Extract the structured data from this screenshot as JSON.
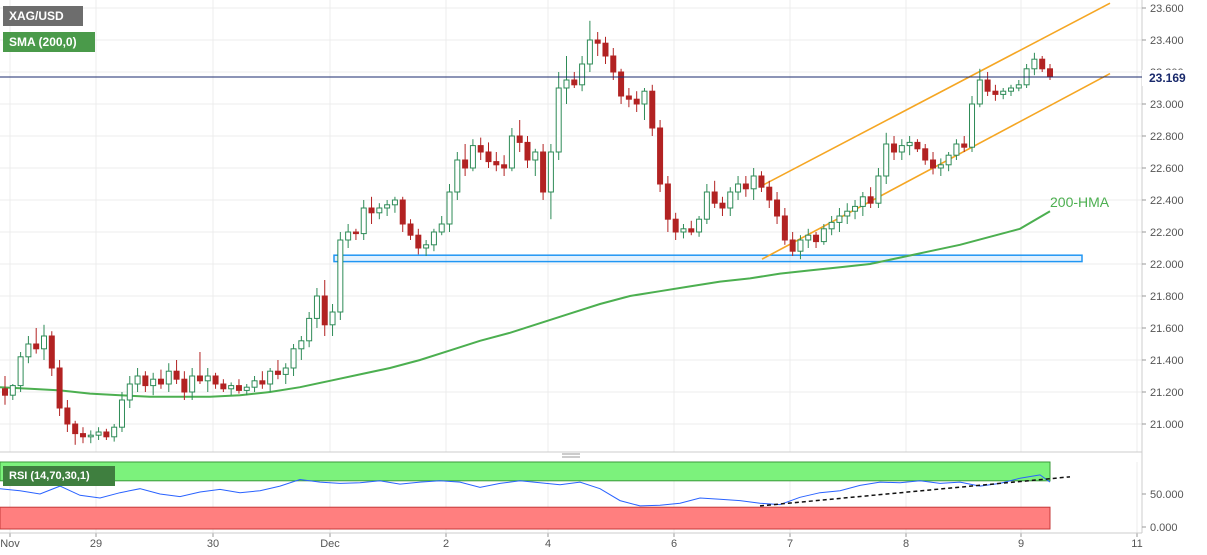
{
  "header": {
    "symbol_label": "XAG/USD",
    "indicator_label": "SMA (200,0)",
    "rsi_label": "RSI (14,70,30,1)"
  },
  "colors": {
    "up_candle": "#2e8b57",
    "down_candle": "#b22222",
    "hma_line": "#4caf50",
    "channel": "#f5a623",
    "support_zone": "#2196f3",
    "rsi_line": "#2962ff",
    "rsi_overbought": "#7cf27c",
    "rsi_oversold": "#ff7f7f",
    "price_line": "#1a2a6c"
  },
  "chart_data": [
    {
      "type": "candlestick",
      "title": "XAG/USD",
      "ylim": [
        20.85,
        23.65
      ],
      "yticks": [
        "21.000",
        "21.200",
        "21.400",
        "21.600",
        "21.800",
        "22.000",
        "22.200",
        "22.400",
        "22.600",
        "22.800",
        "23.000",
        "23.200",
        "23.400",
        "23.600"
      ],
      "xticks": [
        "Nov",
        "29",
        "30",
        "Dec",
        "2",
        "4",
        "6",
        "7",
        "8",
        "9",
        "11"
      ],
      "last_price": "23.169",
      "annotation": "200-HMA",
      "series": [
        {
          "name": "200-HMA",
          "x": [
            0,
            30,
            60,
            90,
            120,
            150,
            180,
            210,
            240,
            270,
            300,
            330,
            360,
            390,
            420,
            450,
            480,
            510,
            540,
            570,
            600,
            630,
            660,
            690,
            720,
            750,
            780,
            810,
            840,
            870,
            900,
            930,
            960,
            990,
            1020,
            1050
          ],
          "values": [
            21.23,
            21.22,
            21.21,
            21.19,
            21.18,
            21.17,
            21.17,
            21.17,
            21.18,
            21.2,
            21.23,
            21.27,
            21.31,
            21.35,
            21.4,
            21.46,
            21.52,
            21.57,
            21.63,
            21.69,
            21.75,
            21.8,
            21.83,
            21.86,
            21.89,
            21.91,
            21.94,
            21.96,
            21.98,
            22.0,
            22.04,
            22.08,
            22.12,
            22.17,
            22.22,
            22.33
          ]
        },
        {
          "name": "channel-upper",
          "x": [
            762,
            1110
          ],
          "values": [
            22.49,
            23.63
          ]
        },
        {
          "name": "channel-lower",
          "x": [
            762,
            1110
          ],
          "values": [
            22.03,
            23.19
          ]
        },
        {
          "name": "support-zone",
          "x": [
            334,
            1082
          ],
          "values": [
            22.015,
            22.055
          ]
        }
      ],
      "candles": [
        [
          21.22,
          21.3,
          21.12,
          21.18
        ],
        [
          21.18,
          21.25,
          21.15,
          21.24
        ],
        [
          21.24,
          21.45,
          21.2,
          21.42
        ],
        [
          21.42,
          21.55,
          21.38,
          21.5
        ],
        [
          21.5,
          21.6,
          21.44,
          21.47
        ],
        [
          21.47,
          21.62,
          21.4,
          21.55
        ],
        [
          21.55,
          21.58,
          21.3,
          21.35
        ],
        [
          21.35,
          21.4,
          21.05,
          21.1
        ],
        [
          21.1,
          21.15,
          20.95,
          21.0
        ],
        [
          21.0,
          21.02,
          20.87,
          20.94
        ],
        [
          20.94,
          20.98,
          20.88,
          20.92
        ],
        [
          20.92,
          20.96,
          20.88,
          20.93
        ],
        [
          20.93,
          20.98,
          20.9,
          20.95
        ],
        [
          20.95,
          20.97,
          20.9,
          20.92
        ],
        [
          20.92,
          21.0,
          20.89,
          20.98
        ],
        [
          20.98,
          21.2,
          20.95,
          21.15
        ],
        [
          21.15,
          21.3,
          21.1,
          21.25
        ],
        [
          21.25,
          21.35,
          21.2,
          21.3
        ],
        [
          21.3,
          21.33,
          21.2,
          21.24
        ],
        [
          21.24,
          21.32,
          21.18,
          21.28
        ],
        [
          21.28,
          21.34,
          21.22,
          21.25
        ],
        [
          21.25,
          21.38,
          21.2,
          21.33
        ],
        [
          21.33,
          21.4,
          21.25,
          21.28
        ],
        [
          21.28,
          21.33,
          21.15,
          21.2
        ],
        [
          21.2,
          21.35,
          21.15,
          21.3
        ],
        [
          21.3,
          21.45,
          21.25,
          21.27
        ],
        [
          21.27,
          21.35,
          21.2,
          21.3
        ],
        [
          21.3,
          21.32,
          21.22,
          21.25
        ],
        [
          21.25,
          21.28,
          21.2,
          21.22
        ],
        [
          21.22,
          21.26,
          21.18,
          21.24
        ],
        [
          21.24,
          21.28,
          21.19,
          21.21
        ],
        [
          21.21,
          21.25,
          21.18,
          21.23
        ],
        [
          21.23,
          21.3,
          21.2,
          21.27
        ],
        [
          21.27,
          21.33,
          21.22,
          21.25
        ],
        [
          21.25,
          21.35,
          21.2,
          21.33
        ],
        [
          21.33,
          21.4,
          21.28,
          21.31
        ],
        [
          21.31,
          21.38,
          21.25,
          21.35
        ],
        [
          21.35,
          21.5,
          21.3,
          21.47
        ],
        [
          21.47,
          21.55,
          21.4,
          21.52
        ],
        [
          21.52,
          21.7,
          21.48,
          21.66
        ],
        [
          21.66,
          21.85,
          21.6,
          21.8
        ],
        [
          21.8,
          21.9,
          21.55,
          21.62
        ],
        [
          21.62,
          21.75,
          21.55,
          21.7
        ],
        [
          21.7,
          22.2,
          21.65,
          22.15
        ],
        [
          22.15,
          22.25,
          22.1,
          22.2
        ],
        [
          22.2,
          22.22,
          22.15,
          22.19
        ],
        [
          22.19,
          22.4,
          22.15,
          22.35
        ],
        [
          22.35,
          22.42,
          22.25,
          22.32
        ],
        [
          22.32,
          22.38,
          22.28,
          22.35
        ],
        [
          22.35,
          22.4,
          22.3,
          22.37
        ],
        [
          22.37,
          22.42,
          22.32,
          22.4
        ],
        [
          22.4,
          22.42,
          22.2,
          22.25
        ],
        [
          22.25,
          22.28,
          22.15,
          22.18
        ],
        [
          22.18,
          22.22,
          22.06,
          22.1
        ],
        [
          22.1,
          22.15,
          22.05,
          22.12
        ],
        [
          22.12,
          22.22,
          22.08,
          22.2
        ],
        [
          22.2,
          22.3,
          22.18,
          22.25
        ],
        [
          22.25,
          22.5,
          22.2,
          22.45
        ],
        [
          22.45,
          22.7,
          22.4,
          22.65
        ],
        [
          22.65,
          22.75,
          22.55,
          22.6
        ],
        [
          22.6,
          22.78,
          22.58,
          22.74
        ],
        [
          22.74,
          22.79,
          22.65,
          22.7
        ],
        [
          22.7,
          22.76,
          22.6,
          22.64
        ],
        [
          22.64,
          22.7,
          22.58,
          22.62
        ],
        [
          22.62,
          22.68,
          22.55,
          22.6
        ],
        [
          22.6,
          22.85,
          22.58,
          22.8
        ],
        [
          22.8,
          22.9,
          22.7,
          22.76
        ],
        [
          22.76,
          22.8,
          22.6,
          22.65
        ],
        [
          22.65,
          22.72,
          22.55,
          22.7
        ],
        [
          22.7,
          22.75,
          22.4,
          22.45
        ],
        [
          22.45,
          22.75,
          22.28,
          22.7
        ],
        [
          22.7,
          23.2,
          22.65,
          23.1
        ],
        [
          23.1,
          23.3,
          23.0,
          23.15
        ],
        [
          23.15,
          23.2,
          23.1,
          23.12
        ],
        [
          23.12,
          23.3,
          23.08,
          23.25
        ],
        [
          23.25,
          23.52,
          23.2,
          23.4
        ],
        [
          23.4,
          23.45,
          23.3,
          23.38
        ],
        [
          23.38,
          23.42,
          23.25,
          23.3
        ],
        [
          23.3,
          23.35,
          23.15,
          23.2
        ],
        [
          23.2,
          23.22,
          23.0,
          23.05
        ],
        [
          23.05,
          23.1,
          22.98,
          23.03
        ],
        [
          23.03,
          23.08,
          22.95,
          23.0
        ],
        [
          23.0,
          23.1,
          22.9,
          23.08
        ],
        [
          23.08,
          23.12,
          22.8,
          22.85
        ],
        [
          22.85,
          22.9,
          22.45,
          22.5
        ],
        [
          22.5,
          22.55,
          22.2,
          22.28
        ],
        [
          22.28,
          22.32,
          22.15,
          22.2
        ],
        [
          22.2,
          22.25,
          22.16,
          22.22
        ],
        [
          22.22,
          22.27,
          22.18,
          22.2
        ],
        [
          22.2,
          22.3,
          22.17,
          22.28
        ],
        [
          22.28,
          22.5,
          22.25,
          22.45
        ],
        [
          22.45,
          22.52,
          22.35,
          22.38
        ],
        [
          22.38,
          22.42,
          22.3,
          22.35
        ],
        [
          22.35,
          22.48,
          22.3,
          22.45
        ],
        [
          22.45,
          22.55,
          22.4,
          22.5
        ],
        [
          22.5,
          22.55,
          22.42,
          22.47
        ],
        [
          22.47,
          22.6,
          22.4,
          22.55
        ],
        [
          22.55,
          22.58,
          22.45,
          22.48
        ],
        [
          22.48,
          22.52,
          22.35,
          22.4
        ],
        [
          22.4,
          22.45,
          22.25,
          22.3
        ],
        [
          22.3,
          22.35,
          22.12,
          22.15
        ],
        [
          22.15,
          22.2,
          22.05,
          22.08
        ],
        [
          22.08,
          22.18,
          22.03,
          22.15
        ],
        [
          22.15,
          22.22,
          22.1,
          22.18
        ],
        [
          22.18,
          22.2,
          22.1,
          22.14
        ],
        [
          22.14,
          22.25,
          22.12,
          22.22
        ],
        [
          22.22,
          22.3,
          22.18,
          22.26
        ],
        [
          22.26,
          22.35,
          22.2,
          22.3
        ],
        [
          22.3,
          22.38,
          22.25,
          22.33
        ],
        [
          22.33,
          22.4,
          22.28,
          22.36
        ],
        [
          22.36,
          22.45,
          22.3,
          22.42
        ],
        [
          22.42,
          22.48,
          22.35,
          22.38
        ],
        [
          22.38,
          22.6,
          22.35,
          22.55
        ],
        [
          22.55,
          22.82,
          22.5,
          22.75
        ],
        [
          22.75,
          22.8,
          22.65,
          22.7
        ],
        [
          22.7,
          22.78,
          22.65,
          22.74
        ],
        [
          22.74,
          22.8,
          22.68,
          22.76
        ],
        [
          22.76,
          22.78,
          22.7,
          22.72
        ],
        [
          22.72,
          22.75,
          22.62,
          22.65
        ],
        [
          22.65,
          22.7,
          22.56,
          22.6
        ],
        [
          22.6,
          22.66,
          22.55,
          22.62
        ],
        [
          22.62,
          22.7,
          22.58,
          22.68
        ],
        [
          22.68,
          22.78,
          22.65,
          22.75
        ],
        [
          22.75,
          22.8,
          22.7,
          22.73
        ],
        [
          22.73,
          23.05,
          22.7,
          23.0
        ],
        [
          23.0,
          23.22,
          22.98,
          23.15
        ],
        [
          23.15,
          23.2,
          23.05,
          23.08
        ],
        [
          23.08,
          23.12,
          23.02,
          23.06
        ],
        [
          23.06,
          23.1,
          23.03,
          23.08
        ],
        [
          23.08,
          23.12,
          23.05,
          23.1
        ],
        [
          23.1,
          23.15,
          23.08,
          23.12
        ],
        [
          23.12,
          23.25,
          23.1,
          23.22
        ],
        [
          23.22,
          23.32,
          23.18,
          23.28
        ],
        [
          23.28,
          23.3,
          23.2,
          23.22
        ],
        [
          23.22,
          23.25,
          23.15,
          23.17
        ]
      ]
    },
    {
      "type": "line",
      "title": "RSI (14,70,30,1)",
      "ylim": [
        0,
        100
      ],
      "yticks": [
        "0.000",
        "50.000"
      ],
      "overbought": 70,
      "oversold": 30,
      "series": [
        {
          "name": "RSI",
          "x": [
            0,
            20,
            40,
            60,
            80,
            100,
            120,
            140,
            160,
            180,
            200,
            220,
            240,
            260,
            280,
            300,
            320,
            340,
            360,
            380,
            400,
            420,
            440,
            460,
            480,
            500,
            520,
            540,
            560,
            580,
            600,
            620,
            640,
            660,
            680,
            700,
            720,
            740,
            760,
            780,
            800,
            820,
            840,
            860,
            880,
            900,
            920,
            940,
            960,
            980,
            1000,
            1020,
            1040,
            1050
          ],
          "values": [
            58,
            55,
            50,
            62,
            48,
            44,
            52,
            58,
            50,
            46,
            53,
            57,
            52,
            55,
            62,
            72,
            68,
            66,
            67,
            70,
            65,
            68,
            70,
            68,
            60,
            66,
            70,
            67,
            64,
            68,
            58,
            40,
            32,
            33,
            36,
            44,
            42,
            40,
            36,
            34,
            45,
            52,
            55,
            63,
            68,
            67,
            70,
            66,
            68,
            62,
            66,
            74,
            79,
            68
          ]
        },
        {
          "name": "rsi-trendline",
          "x": [
            760,
            1070
          ],
          "values": [
            32,
            76
          ]
        }
      ]
    }
  ]
}
